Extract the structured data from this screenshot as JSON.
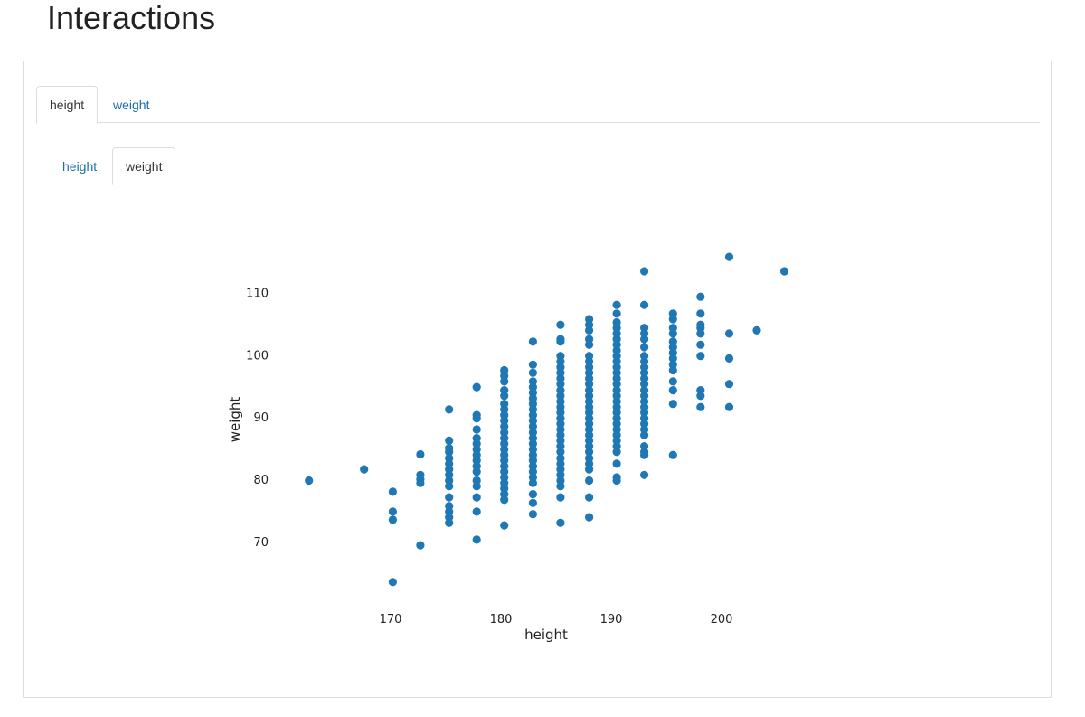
{
  "page": {
    "title": "Interactions"
  },
  "outer_tabs": [
    {
      "label": "height",
      "active": true
    },
    {
      "label": "weight",
      "active": false
    }
  ],
  "inner_tabs": [
    {
      "label": "height",
      "active": false
    },
    {
      "label": "weight",
      "active": true
    }
  ],
  "colors": {
    "point": "#1f77b4",
    "link": "#1a6fa8",
    "border": "#dddddd"
  },
  "chart_data": {
    "type": "scatter",
    "xlabel": "height",
    "ylabel": "weight",
    "xlim": [
      160,
      211
    ],
    "ylim": [
      58,
      120
    ],
    "x_ticks": [
      170,
      180,
      190,
      200
    ],
    "y_ticks": [
      70,
      80,
      90,
      100,
      110
    ],
    "grid": false,
    "series": [
      {
        "points": [
          [
            162.6,
            79.8
          ],
          [
            167.6,
            81.6
          ],
          [
            170.2,
            78.0
          ],
          [
            170.2,
            74.8
          ],
          [
            170.2,
            73.5
          ],
          [
            170.2,
            63.5
          ],
          [
            172.7,
            84.0
          ],
          [
            172.7,
            80.7
          ],
          [
            172.7,
            80.0
          ],
          [
            172.7,
            79.4
          ],
          [
            172.7,
            69.4
          ],
          [
            175.3,
            91.2
          ],
          [
            175.3,
            86.2
          ],
          [
            175.3,
            85.0
          ],
          [
            175.3,
            84.4
          ],
          [
            175.3,
            83.4
          ],
          [
            175.3,
            82.5
          ],
          [
            175.3,
            81.6
          ],
          [
            175.3,
            80.7
          ],
          [
            175.3,
            79.8
          ],
          [
            175.3,
            78.9
          ],
          [
            175.3,
            77.1
          ],
          [
            175.3,
            75.7
          ],
          [
            175.3,
            74.8
          ],
          [
            175.3,
            73.9
          ],
          [
            175.3,
            73.0
          ],
          [
            177.8,
            94.8
          ],
          [
            177.8,
            90.3
          ],
          [
            177.8,
            89.8
          ],
          [
            177.8,
            88.0
          ],
          [
            177.8,
            86.6
          ],
          [
            177.8,
            85.7
          ],
          [
            177.8,
            84.8
          ],
          [
            177.8,
            83.9
          ],
          [
            177.8,
            83.0
          ],
          [
            177.8,
            82.1
          ],
          [
            177.8,
            81.2
          ],
          [
            177.8,
            79.8
          ],
          [
            177.8,
            78.9
          ],
          [
            177.8,
            77.1
          ],
          [
            177.8,
            74.8
          ],
          [
            177.8,
            70.3
          ],
          [
            180.3,
            97.5
          ],
          [
            180.3,
            96.6
          ],
          [
            180.3,
            95.7
          ],
          [
            180.3,
            94.3
          ],
          [
            180.3,
            93.4
          ],
          [
            180.3,
            92.1
          ],
          [
            180.3,
            91.2
          ],
          [
            180.3,
            90.3
          ],
          [
            180.3,
            89.4
          ],
          [
            180.3,
            88.5
          ],
          [
            180.3,
            87.5
          ],
          [
            180.3,
            86.6
          ],
          [
            180.3,
            85.7
          ],
          [
            180.3,
            84.8
          ],
          [
            180.3,
            83.9
          ],
          [
            180.3,
            83.0
          ],
          [
            180.3,
            82.1
          ],
          [
            180.3,
            81.2
          ],
          [
            180.3,
            80.3
          ],
          [
            180.3,
            79.4
          ],
          [
            180.3,
            78.5
          ],
          [
            180.3,
            77.6
          ],
          [
            180.3,
            76.7
          ],
          [
            180.3,
            72.6
          ],
          [
            182.9,
            102.1
          ],
          [
            182.9,
            98.4
          ],
          [
            182.9,
            97.1
          ],
          [
            182.9,
            95.7
          ],
          [
            182.9,
            94.8
          ],
          [
            182.9,
            93.9
          ],
          [
            182.9,
            93.0
          ],
          [
            182.9,
            92.1
          ],
          [
            182.9,
            91.2
          ],
          [
            182.9,
            90.3
          ],
          [
            182.9,
            89.4
          ],
          [
            182.9,
            88.5
          ],
          [
            182.9,
            87.5
          ],
          [
            182.9,
            86.6
          ],
          [
            182.9,
            85.7
          ],
          [
            182.9,
            84.8
          ],
          [
            182.9,
            83.9
          ],
          [
            182.9,
            83.0
          ],
          [
            182.9,
            82.1
          ],
          [
            182.9,
            81.2
          ],
          [
            182.9,
            80.3
          ],
          [
            182.9,
            79.4
          ],
          [
            182.9,
            77.6
          ],
          [
            182.9,
            76.2
          ],
          [
            182.9,
            74.4
          ],
          [
            185.4,
            104.8
          ],
          [
            185.4,
            102.5
          ],
          [
            185.4,
            102.1
          ],
          [
            185.4,
            99.8
          ],
          [
            185.4,
            98.9
          ],
          [
            185.4,
            98.0
          ],
          [
            185.4,
            97.1
          ],
          [
            185.4,
            96.2
          ],
          [
            185.4,
            95.3
          ],
          [
            185.4,
            94.3
          ],
          [
            185.4,
            93.4
          ],
          [
            185.4,
            92.5
          ],
          [
            185.4,
            91.6
          ],
          [
            185.4,
            90.7
          ],
          [
            185.4,
            89.8
          ],
          [
            185.4,
            88.9
          ],
          [
            185.4,
            88.0
          ],
          [
            185.4,
            87.1
          ],
          [
            185.4,
            86.2
          ],
          [
            185.4,
            85.3
          ],
          [
            185.4,
            84.4
          ],
          [
            185.4,
            83.4
          ],
          [
            185.4,
            82.5
          ],
          [
            185.4,
            81.6
          ],
          [
            185.4,
            80.7
          ],
          [
            185.4,
            79.8
          ],
          [
            185.4,
            78.9
          ],
          [
            185.4,
            77.1
          ],
          [
            185.4,
            73.0
          ],
          [
            188.0,
            105.7
          ],
          [
            188.0,
            104.8
          ],
          [
            188.0,
            103.9
          ],
          [
            188.0,
            102.5
          ],
          [
            188.0,
            101.6
          ],
          [
            188.0,
            99.8
          ],
          [
            188.0,
            98.9
          ],
          [
            188.0,
            98.0
          ],
          [
            188.0,
            97.1
          ],
          [
            188.0,
            96.2
          ],
          [
            188.0,
            95.3
          ],
          [
            188.0,
            94.3
          ],
          [
            188.0,
            93.4
          ],
          [
            188.0,
            92.5
          ],
          [
            188.0,
            91.6
          ],
          [
            188.0,
            90.7
          ],
          [
            188.0,
            89.8
          ],
          [
            188.0,
            88.9
          ],
          [
            188.0,
            88.0
          ],
          [
            188.0,
            87.1
          ],
          [
            188.0,
            86.2
          ],
          [
            188.0,
            85.3
          ],
          [
            188.0,
            84.4
          ],
          [
            188.0,
            83.4
          ],
          [
            188.0,
            82.5
          ],
          [
            188.0,
            81.6
          ],
          [
            188.0,
            79.8
          ],
          [
            188.0,
            77.1
          ],
          [
            188.0,
            73.9
          ],
          [
            190.5,
            108.0
          ],
          [
            190.5,
            106.6
          ],
          [
            190.5,
            105.2
          ],
          [
            190.5,
            104.3
          ],
          [
            190.5,
            103.4
          ],
          [
            190.5,
            102.5
          ],
          [
            190.5,
            101.6
          ],
          [
            190.5,
            100.7
          ],
          [
            190.5,
            99.8
          ],
          [
            190.5,
            98.9
          ],
          [
            190.5,
            98.0
          ],
          [
            190.5,
            97.1
          ],
          [
            190.5,
            96.2
          ],
          [
            190.5,
            95.3
          ],
          [
            190.5,
            94.3
          ],
          [
            190.5,
            93.4
          ],
          [
            190.5,
            92.5
          ],
          [
            190.5,
            91.6
          ],
          [
            190.5,
            90.7
          ],
          [
            190.5,
            89.8
          ],
          [
            190.5,
            88.9
          ],
          [
            190.5,
            88.0
          ],
          [
            190.5,
            87.1
          ],
          [
            190.5,
            86.2
          ],
          [
            190.5,
            85.3
          ],
          [
            190.5,
            84.4
          ],
          [
            190.5,
            82.5
          ],
          [
            190.5,
            80.3
          ],
          [
            190.5,
            79.8
          ],
          [
            193.0,
            113.4
          ],
          [
            193.0,
            108.0
          ],
          [
            193.0,
            104.3
          ],
          [
            193.0,
            103.4
          ],
          [
            193.0,
            102.5
          ],
          [
            193.0,
            101.2
          ],
          [
            193.0,
            99.8
          ],
          [
            193.0,
            98.9
          ],
          [
            193.0,
            98.0
          ],
          [
            193.0,
            97.1
          ],
          [
            193.0,
            96.2
          ],
          [
            193.0,
            95.3
          ],
          [
            193.0,
            94.3
          ],
          [
            193.0,
            93.4
          ],
          [
            193.0,
            92.5
          ],
          [
            193.0,
            91.6
          ],
          [
            193.0,
            90.7
          ],
          [
            193.0,
            89.8
          ],
          [
            193.0,
            88.9
          ],
          [
            193.0,
            88.0
          ],
          [
            193.0,
            87.1
          ],
          [
            193.0,
            85.3
          ],
          [
            193.0,
            84.4
          ],
          [
            193.0,
            83.9
          ],
          [
            193.0,
            80.7
          ],
          [
            195.6,
            106.6
          ],
          [
            195.6,
            105.7
          ],
          [
            195.6,
            104.3
          ],
          [
            195.6,
            103.4
          ],
          [
            195.6,
            102.1
          ],
          [
            195.6,
            101.2
          ],
          [
            195.6,
            100.3
          ],
          [
            195.6,
            99.4
          ],
          [
            195.6,
            98.4
          ],
          [
            195.6,
            97.5
          ],
          [
            195.6,
            95.7
          ],
          [
            195.6,
            94.3
          ],
          [
            195.6,
            92.1
          ],
          [
            195.6,
            83.9
          ],
          [
            198.1,
            109.3
          ],
          [
            198.1,
            106.6
          ],
          [
            198.1,
            104.8
          ],
          [
            198.1,
            104.3
          ],
          [
            198.1,
            103.4
          ],
          [
            198.1,
            101.6
          ],
          [
            198.1,
            99.8
          ],
          [
            198.1,
            94.3
          ],
          [
            198.1,
            93.4
          ],
          [
            198.1,
            91.6
          ],
          [
            200.7,
            115.7
          ],
          [
            200.7,
            103.4
          ],
          [
            200.7,
            99.4
          ],
          [
            200.7,
            95.3
          ],
          [
            200.7,
            91.6
          ],
          [
            203.2,
            103.9
          ],
          [
            205.7,
            113.4
          ]
        ]
      }
    ]
  }
}
